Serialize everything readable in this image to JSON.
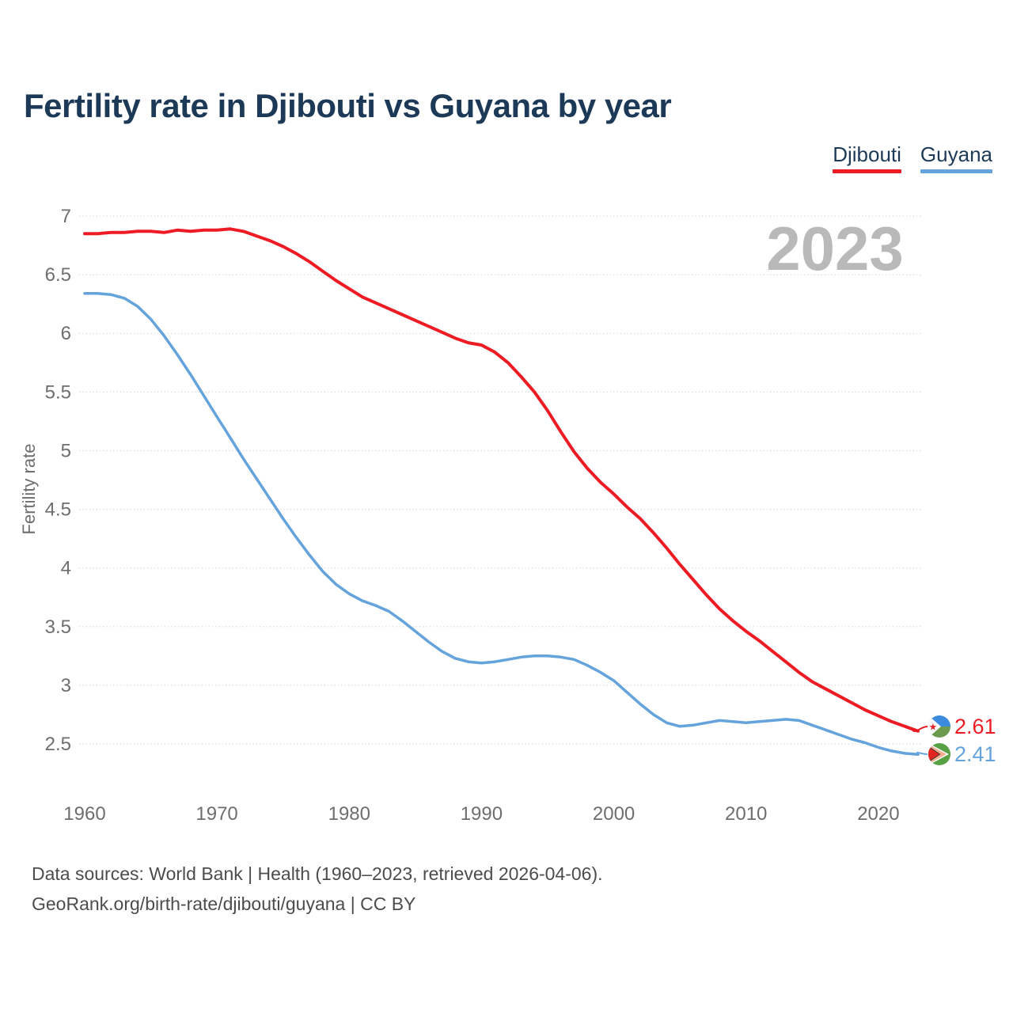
{
  "title": "Fertility rate in Djibouti vs Guyana by year",
  "watermark": "2023",
  "legend": [
    {
      "label": "Djibouti",
      "color": "#ed1c24"
    },
    {
      "label": "Guyana",
      "color": "#64a3dc"
    }
  ],
  "end_labels": [
    {
      "series": "Djibouti",
      "value": "2.61",
      "color": "#ed1c24"
    },
    {
      "series": "Guyana",
      "value": "2.41",
      "color": "#64a3dc"
    }
  ],
  "sources": {
    "line1": "Data sources: World Bank | Health (1960–2023, retrieved 2026-04-06).",
    "line2": "GeoRank.org/birth-rate/djibouti/guyana | CC BY"
  },
  "flags": {
    "djibouti": {
      "blue": "#3b8bdf",
      "green": "#6d9b4e",
      "white": "#ffffff",
      "star_red": "#e8242b"
    },
    "guyana": {
      "green": "#57a043",
      "white": "#ffffff",
      "gold": "#f5ad92",
      "dark": "#3a3a35",
      "red": "#e3251f"
    }
  },
  "chart_data": {
    "type": "line",
    "title": "Fertility rate in Djibouti vs Guyana by year",
    "xlabel": "",
    "ylabel": "Fertility rate",
    "x": [
      1960,
      1961,
      1962,
      1963,
      1964,
      1965,
      1966,
      1967,
      1968,
      1969,
      1970,
      1971,
      1972,
      1973,
      1974,
      1975,
      1976,
      1977,
      1978,
      1979,
      1980,
      1981,
      1982,
      1983,
      1984,
      1985,
      1986,
      1987,
      1988,
      1989,
      1990,
      1991,
      1992,
      1993,
      1994,
      1995,
      1996,
      1997,
      1998,
      1999,
      2000,
      2001,
      2002,
      2003,
      2004,
      2005,
      2006,
      2007,
      2008,
      2009,
      2010,
      2011,
      2012,
      2013,
      2014,
      2015,
      2016,
      2017,
      2018,
      2019,
      2020,
      2021,
      2022,
      2023
    ],
    "series": [
      {
        "name": "Djibouti",
        "color": "#ed1c24",
        "final_value": 2.61,
        "values": [
          6.85,
          6.85,
          6.86,
          6.86,
          6.87,
          6.87,
          6.86,
          6.88,
          6.87,
          6.88,
          6.88,
          6.89,
          6.87,
          6.83,
          6.79,
          6.74,
          6.68,
          6.61,
          6.53,
          6.45,
          6.38,
          6.31,
          6.26,
          6.21,
          6.16,
          6.11,
          6.06,
          6.01,
          5.96,
          5.92,
          5.9,
          5.84,
          5.75,
          5.63,
          5.5,
          5.34,
          5.16,
          4.99,
          4.85,
          4.73,
          4.63,
          4.52,
          4.42,
          4.3,
          4.17,
          4.03,
          3.9,
          3.77,
          3.65,
          3.55,
          3.46,
          3.38,
          3.29,
          3.2,
          3.11,
          3.03,
          2.97,
          2.91,
          2.85,
          2.79,
          2.74,
          2.69,
          2.65,
          2.61
        ]
      },
      {
        "name": "Guyana",
        "color": "#64a3dc",
        "final_value": 2.41,
        "values": [
          6.34,
          6.34,
          6.33,
          6.3,
          6.23,
          6.12,
          5.98,
          5.82,
          5.65,
          5.47,
          5.29,
          5.11,
          4.93,
          4.76,
          4.59,
          4.42,
          4.26,
          4.11,
          3.97,
          3.86,
          3.78,
          3.72,
          3.68,
          3.63,
          3.55,
          3.46,
          3.37,
          3.29,
          3.23,
          3.2,
          3.19,
          3.2,
          3.22,
          3.24,
          3.25,
          3.25,
          3.24,
          3.22,
          3.17,
          3.11,
          3.04,
          2.94,
          2.84,
          2.75,
          2.68,
          2.65,
          2.66,
          2.68,
          2.7,
          2.69,
          2.68,
          2.69,
          2.7,
          2.71,
          2.7,
          2.66,
          2.62,
          2.58,
          2.54,
          2.51,
          2.47,
          2.44,
          2.42,
          2.41
        ]
      }
    ],
    "yticks": [
      7,
      6.5,
      6,
      5.5,
      5,
      4.5,
      4,
      3.5,
      3,
      2.5
    ],
    "xticks": [
      1960,
      1970,
      1980,
      1990,
      2000,
      2010,
      2020
    ],
    "ylim": [
      2.5,
      7
    ],
    "xlim": [
      1960,
      2023
    ],
    "grid": true,
    "legend_position": "top-right",
    "grid_color": "#d6d6d6",
    "tick_color": "#6e6e6e"
  }
}
